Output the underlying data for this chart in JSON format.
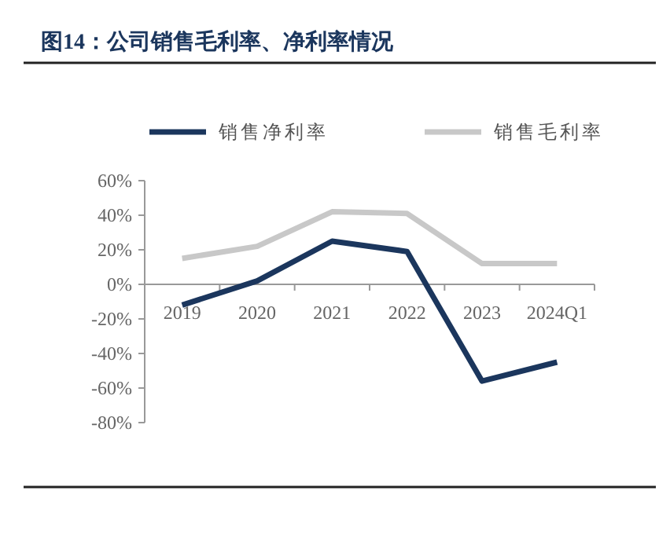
{
  "chart_data": {
    "type": "line",
    "title": "图14：公司销售毛利率、净利率情况",
    "categories": [
      "2019",
      "2020",
      "2021",
      "2022",
      "2023",
      "2024Q1"
    ],
    "series": [
      {
        "name": "销售净利率",
        "color": "#1b365d",
        "values": [
          -12,
          2,
          25,
          19,
          -56,
          -45
        ]
      },
      {
        "name": "销售毛利率",
        "color": "#c8c8c8",
        "values": [
          15,
          22,
          42,
          41,
          12,
          12
        ]
      }
    ],
    "ylim": [
      -80,
      60
    ],
    "yticks": [
      {
        "value": -80,
        "label": "-80%"
      },
      {
        "value": -60,
        "label": "-60%"
      },
      {
        "value": -40,
        "label": "-40%"
      },
      {
        "value": -20,
        "label": "-20%"
      },
      {
        "value": 0,
        "label": "0%"
      },
      {
        "value": 20,
        "label": "20%"
      },
      {
        "value": 40,
        "label": "40%"
      },
      {
        "value": 60,
        "label": "60%"
      }
    ],
    "legend": "top",
    "grid": false,
    "marker": "none",
    "line_style": "solid"
  }
}
